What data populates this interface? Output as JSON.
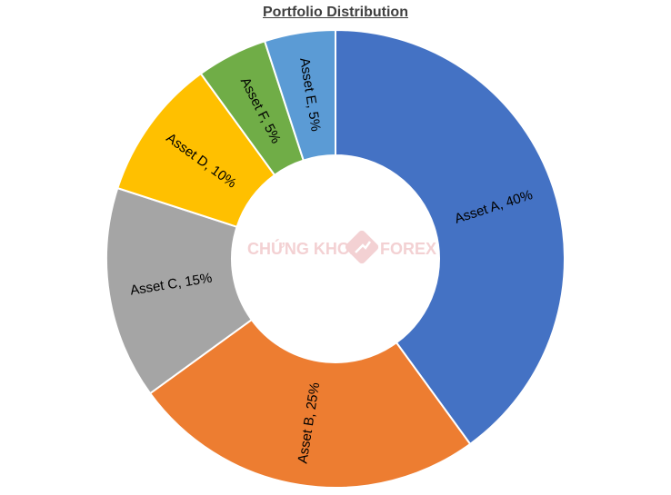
{
  "chart_data": {
    "type": "pie",
    "variant": "donut",
    "title": "Portfolio Distribution",
    "categories": [
      "Asset A",
      "Asset B",
      "Asset C",
      "Asset D",
      "Asset F",
      "Asset E"
    ],
    "values": [
      40,
      25,
      15,
      10,
      5,
      5
    ],
    "data_labels": [
      "Asset A, 40%",
      "Asset B, 25%",
      "Asset C, 15%",
      "Asset D, 10%",
      "Asset F, 5%",
      "Asset E, 5%"
    ],
    "colors": [
      "#4472c4",
      "#ed7d31",
      "#a5a5a5",
      "#ffc000",
      "#70ad47",
      "#5b9bd5"
    ],
    "start": "top",
    "direction": "clockwise",
    "legend": "none"
  },
  "watermark": {
    "left_text": "CHỨNG KHOÁN",
    "right_text": "FOREX"
  }
}
